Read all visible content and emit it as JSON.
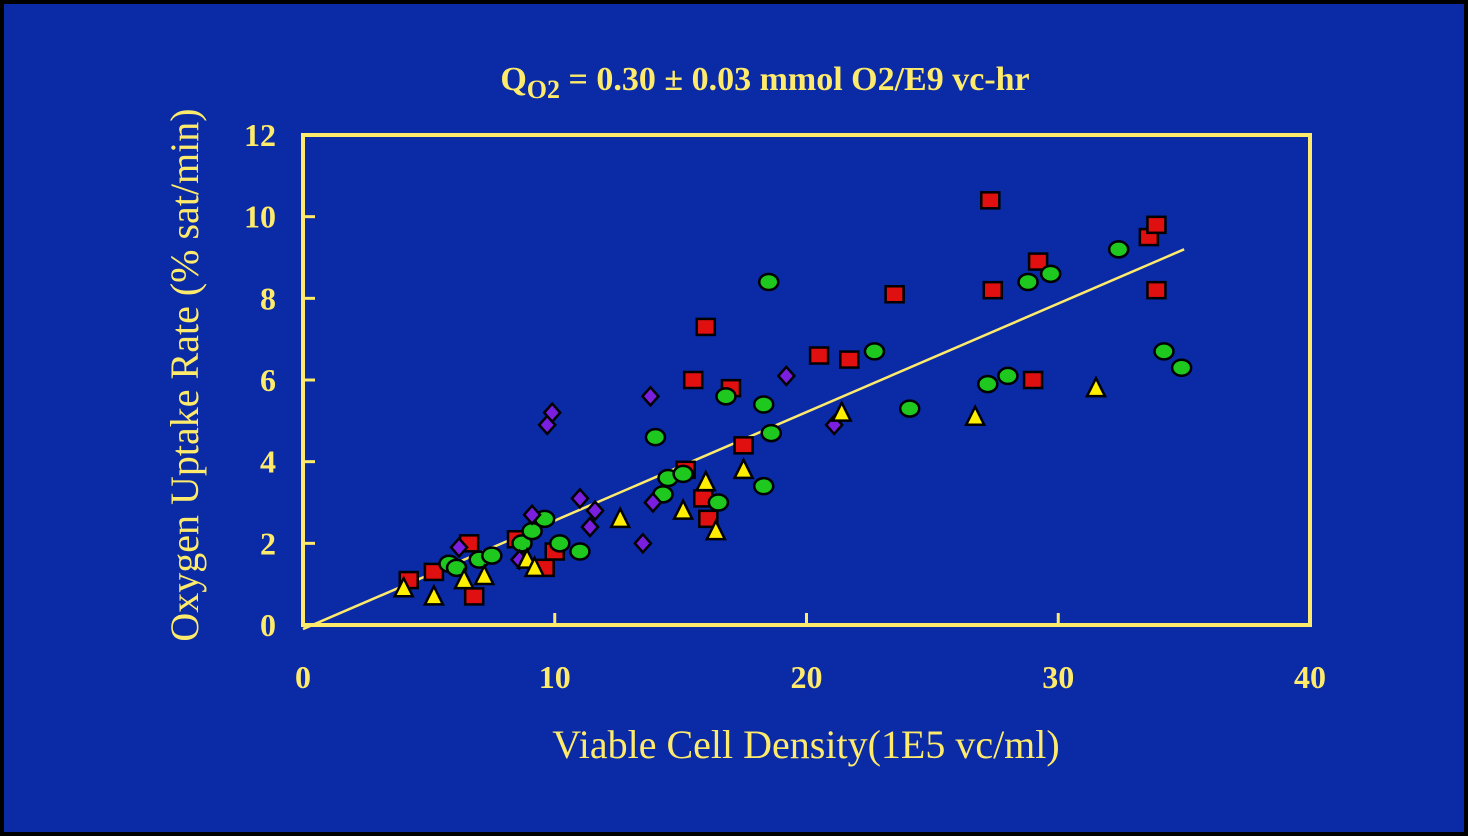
{
  "colors": {
    "background": "#0a2aa6",
    "border": "#000000",
    "foreground": "#ffeb6b",
    "square": "#e01010",
    "circle": "#1ec81e",
    "diamond": "#7a1ee0",
    "triangle": "#ffee00",
    "fit_line": "#ffeb6b"
  },
  "chart_data": {
    "type": "scatter",
    "title_main": "Q",
    "title_sub": "O2",
    "title_rest": " = 0.30 ± 0.03 mmol O2/E9 vc-hr",
    "xlabel": "Viable Cell Density(1E5 vc/ml)",
    "ylabel": "Oxygen Uptake Rate (% sat/min)",
    "xlim": [
      0,
      40
    ],
    "ylim": [
      0,
      12
    ],
    "x_ticks": [
      "0",
      "10",
      "20",
      "30",
      "40"
    ],
    "y_ticks": [
      "0",
      "2",
      "4",
      "6",
      "8",
      "10",
      "12"
    ],
    "grid": false,
    "legend": "none",
    "fit_line": {
      "x": [
        0,
        35
      ],
      "y": [
        -0.1,
        9.2
      ]
    },
    "series": [
      {
        "marker": "square",
        "x": [
          4.2,
          5.2,
          6.6,
          6.8,
          8.5,
          9.6,
          10.0,
          15.2,
          15.5,
          15.9,
          16.1,
          16.0,
          17.0,
          17.5,
          20.5,
          21.7,
          23.5,
          27.3,
          27.4,
          29.0,
          29.2,
          33.6,
          33.9,
          33.9
        ],
        "y": [
          1.1,
          1.3,
          2.0,
          0.7,
          2.1,
          1.4,
          1.8,
          3.8,
          6.0,
          3.1,
          2.6,
          7.3,
          5.8,
          4.4,
          6.6,
          6.5,
          8.1,
          10.4,
          8.2,
          6.0,
          8.9,
          9.5,
          9.8,
          8.2
        ]
      },
      {
        "marker": "circle",
        "x": [
          5.8,
          6.1,
          7.0,
          7.5,
          8.7,
          9.1,
          9.6,
          10.2,
          11.0,
          14.0,
          14.3,
          14.5,
          15.1,
          16.5,
          16.8,
          18.3,
          18.3,
          18.5,
          18.6,
          22.7,
          24.1,
          27.2,
          28.0,
          28.8,
          29.7,
          32.4,
          34.2,
          34.9
        ],
        "y": [
          1.5,
          1.4,
          1.6,
          1.7,
          2.0,
          2.3,
          2.6,
          2.0,
          1.8,
          4.6,
          3.2,
          3.6,
          3.7,
          3.0,
          5.6,
          5.4,
          3.4,
          8.4,
          4.7,
          6.7,
          5.3,
          5.9,
          6.1,
          8.4,
          8.6,
          9.2,
          6.7,
          6.3
        ]
      },
      {
        "marker": "diamond",
        "x": [
          6.2,
          8.6,
          9.1,
          9.7,
          9.9,
          11.0,
          11.4,
          11.6,
          13.5,
          13.9,
          13.8,
          19.2,
          21.1
        ],
        "y": [
          1.9,
          1.6,
          2.7,
          4.9,
          5.2,
          3.1,
          2.4,
          2.8,
          2.0,
          3.0,
          5.6,
          6.1,
          4.9
        ]
      },
      {
        "marker": "triangle",
        "x": [
          4.0,
          5.2,
          6.4,
          7.2,
          8.9,
          9.2,
          12.6,
          15.1,
          16.0,
          16.4,
          17.5,
          21.4,
          26.7,
          31.5
        ],
        "y": [
          0.9,
          0.7,
          1.1,
          1.2,
          1.6,
          1.4,
          2.6,
          2.8,
          3.5,
          2.3,
          3.8,
          5.2,
          5.1,
          5.8
        ]
      }
    ]
  }
}
